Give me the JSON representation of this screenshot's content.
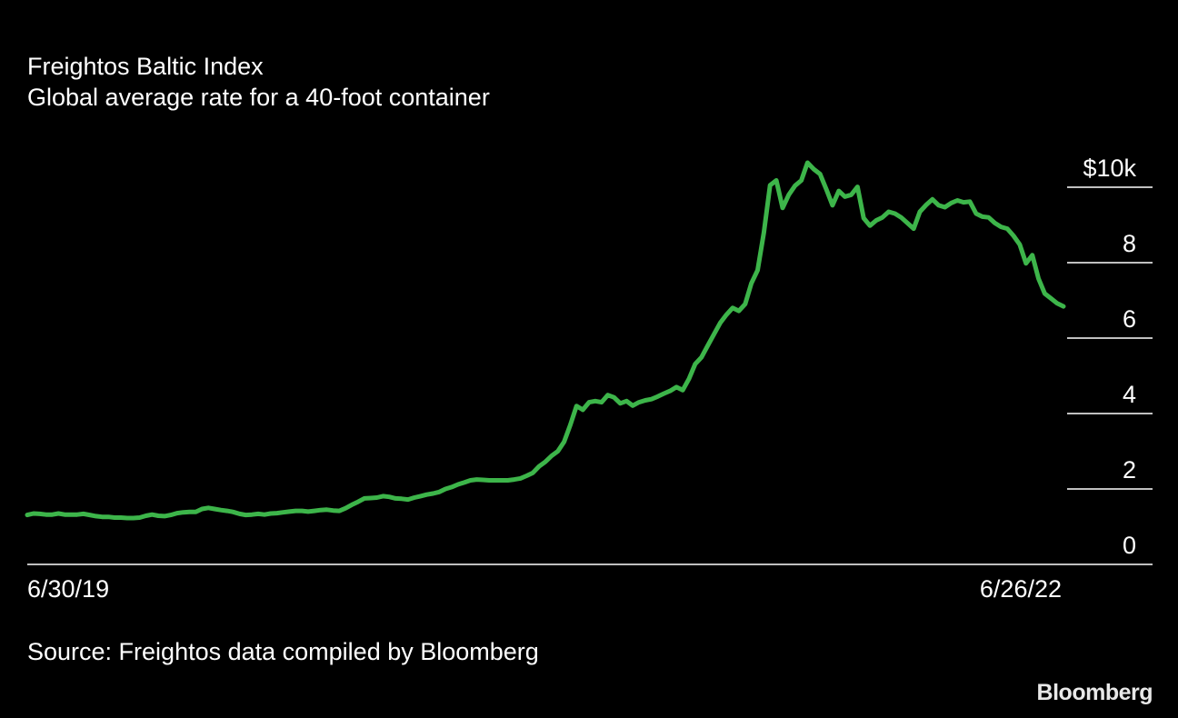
{
  "title": "Freightos Baltic Index",
  "subtitle": "Global average rate for a 40-foot container",
  "source": "Source: Freightos data compiled by Bloomberg",
  "brand": "Bloomberg",
  "chart_data": {
    "type": "line",
    "title": "Freightos Baltic Index",
    "subtitle": "Global average rate for a 40-foot container",
    "xlabel": "",
    "ylabel": "",
    "x_tick_labels": [
      "6/30/19",
      "6/26/22"
    ],
    "y_ticks": [
      0,
      2,
      4,
      6,
      8,
      10
    ],
    "y_tick_labels": [
      "0",
      "2",
      "4",
      "6",
      "8",
      "$10k"
    ],
    "ylim": [
      0,
      10
    ],
    "grid": "horizontal-right",
    "line_color": "#3db54a",
    "series": [
      {
        "values": [
          1.31,
          1.35,
          1.34,
          1.32,
          1.32,
          1.35,
          1.32,
          1.32,
          1.32,
          1.34,
          1.31,
          1.28,
          1.26,
          1.26,
          1.24,
          1.24,
          1.23,
          1.23,
          1.24,
          1.29,
          1.32,
          1.29,
          1.28,
          1.31,
          1.36,
          1.38,
          1.39,
          1.39,
          1.47,
          1.5,
          1.47,
          1.44,
          1.42,
          1.39,
          1.34,
          1.31,
          1.32,
          1.34,
          1.32,
          1.35,
          1.36,
          1.38,
          1.4,
          1.42,
          1.42,
          1.4,
          1.42,
          1.44,
          1.45,
          1.43,
          1.42,
          1.49,
          1.58,
          1.66,
          1.75,
          1.76,
          1.77,
          1.81,
          1.79,
          1.75,
          1.74,
          1.72,
          1.77,
          1.81,
          1.85,
          1.88,
          1.92,
          2.0,
          2.05,
          2.12,
          2.17,
          2.23,
          2.25,
          2.24,
          2.23,
          2.23,
          2.23,
          2.23,
          2.25,
          2.28,
          2.35,
          2.43,
          2.6,
          2.72,
          2.88,
          3.0,
          3.25,
          3.7,
          4.2,
          4.1,
          4.3,
          4.33,
          4.3,
          4.49,
          4.43,
          4.27,
          4.33,
          4.21,
          4.3,
          4.35,
          4.38,
          4.45,
          4.53,
          4.6,
          4.7,
          4.62,
          4.92,
          5.31,
          5.49,
          5.8,
          6.1,
          6.4,
          6.62,
          6.8,
          6.72,
          6.9,
          7.45,
          7.8,
          8.8,
          10.05,
          10.18,
          9.45,
          9.8,
          10.04,
          10.18,
          10.65,
          10.48,
          10.35,
          9.95,
          9.52,
          9.9,
          9.75,
          9.8,
          10.01,
          9.18,
          8.98,
          9.12,
          9.2,
          9.35,
          9.3,
          9.2,
          9.05,
          8.9,
          9.35,
          9.53,
          9.68,
          9.52,
          9.47,
          9.58,
          9.65,
          9.6,
          9.62,
          9.3,
          9.22,
          9.2,
          9.05,
          8.95,
          8.9,
          8.71,
          8.48,
          7.98,
          8.2,
          7.58,
          7.18,
          7.05,
          6.92,
          6.84
        ]
      }
    ]
  }
}
